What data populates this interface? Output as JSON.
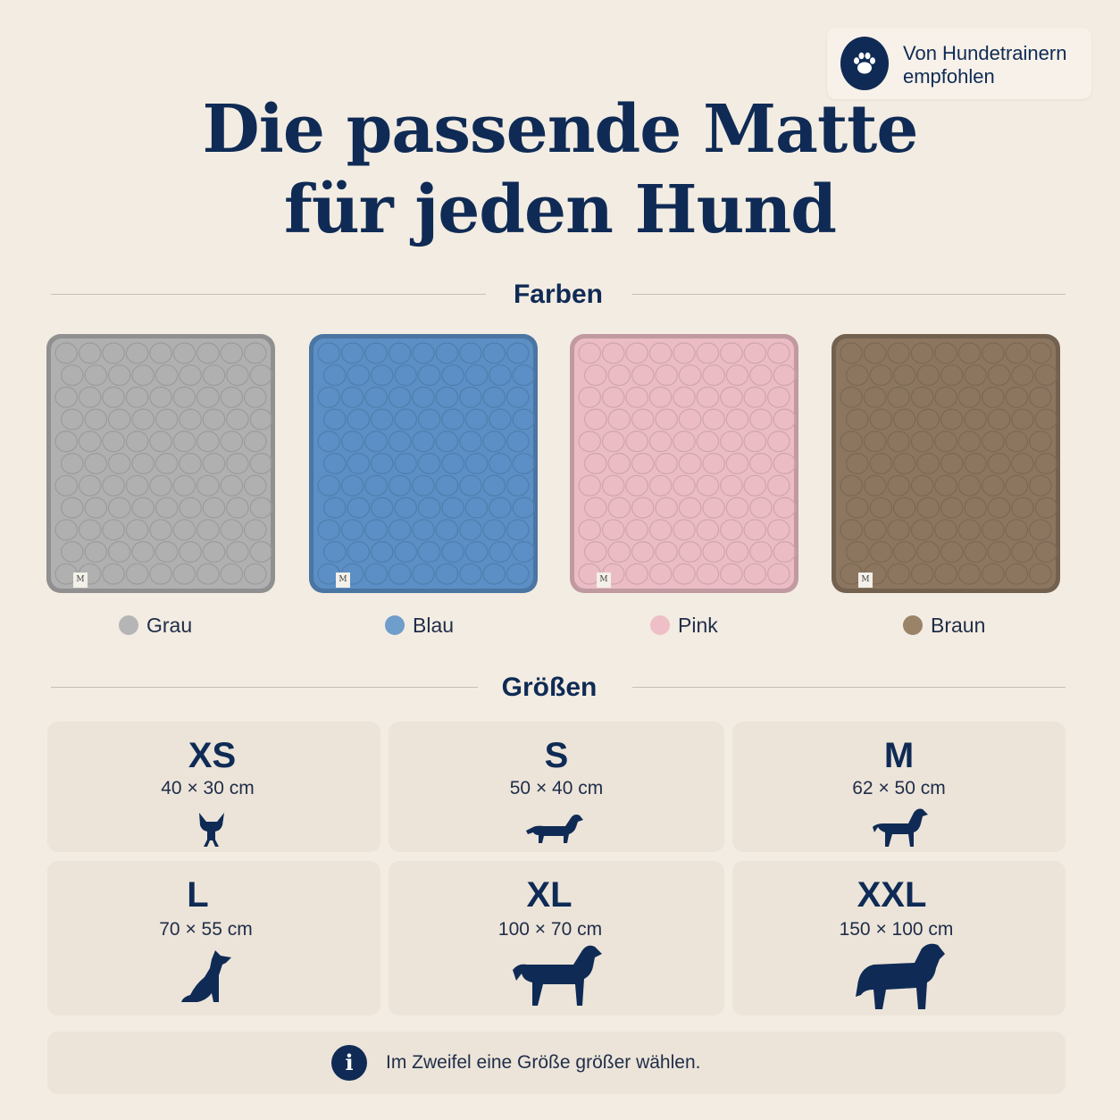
{
  "badge": {
    "line1": "Von Hundetrainern",
    "line2": "empfohlen",
    "icon": "paw-icon"
  },
  "title": {
    "line1": "Die passende Matte",
    "line2": "für jeden Hund"
  },
  "colors_section": {
    "heading": "Farben",
    "items": [
      {
        "label": "Grau",
        "color": "#b0b0b0",
        "dot": "#b5b5b5",
        "tag": "M"
      },
      {
        "label": "Blau",
        "color": "#5b8fc5",
        "dot": "#6f9dcc",
        "tag": "M"
      },
      {
        "label": "Pink",
        "color": "#ebbcc4",
        "dot": "#efbfc7",
        "tag": "M"
      },
      {
        "label": "Braun",
        "color": "#8c7660",
        "dot": "#9a8369",
        "tag": "M"
      }
    ]
  },
  "sizes_section": {
    "heading": "Größen",
    "items": [
      {
        "size": "XS",
        "dims": "40 × 30 cm",
        "icon": "chihuahua-icon"
      },
      {
        "size": "S",
        "dims": "50 × 40 cm",
        "icon": "dachshund-icon"
      },
      {
        "size": "M",
        "dims": "62 × 50 cm",
        "icon": "spaniel-icon"
      },
      {
        "size": "L",
        "dims": "70 × 55 cm",
        "icon": "sitting-dog-icon"
      },
      {
        "size": "XL",
        "dims": "100 × 70 cm",
        "icon": "retriever-icon"
      },
      {
        "size": "XXL",
        "dims": "150 × 100 cm",
        "icon": "large-dog-icon"
      }
    ]
  },
  "info": {
    "text": "Im Zweifel eine Größe größer wählen.",
    "icon": "info-icon",
    "icon_glyph": "i"
  },
  "theme": {
    "background": "#f3ece2",
    "navy": "#0f2b55",
    "card": "#ece4d9"
  }
}
